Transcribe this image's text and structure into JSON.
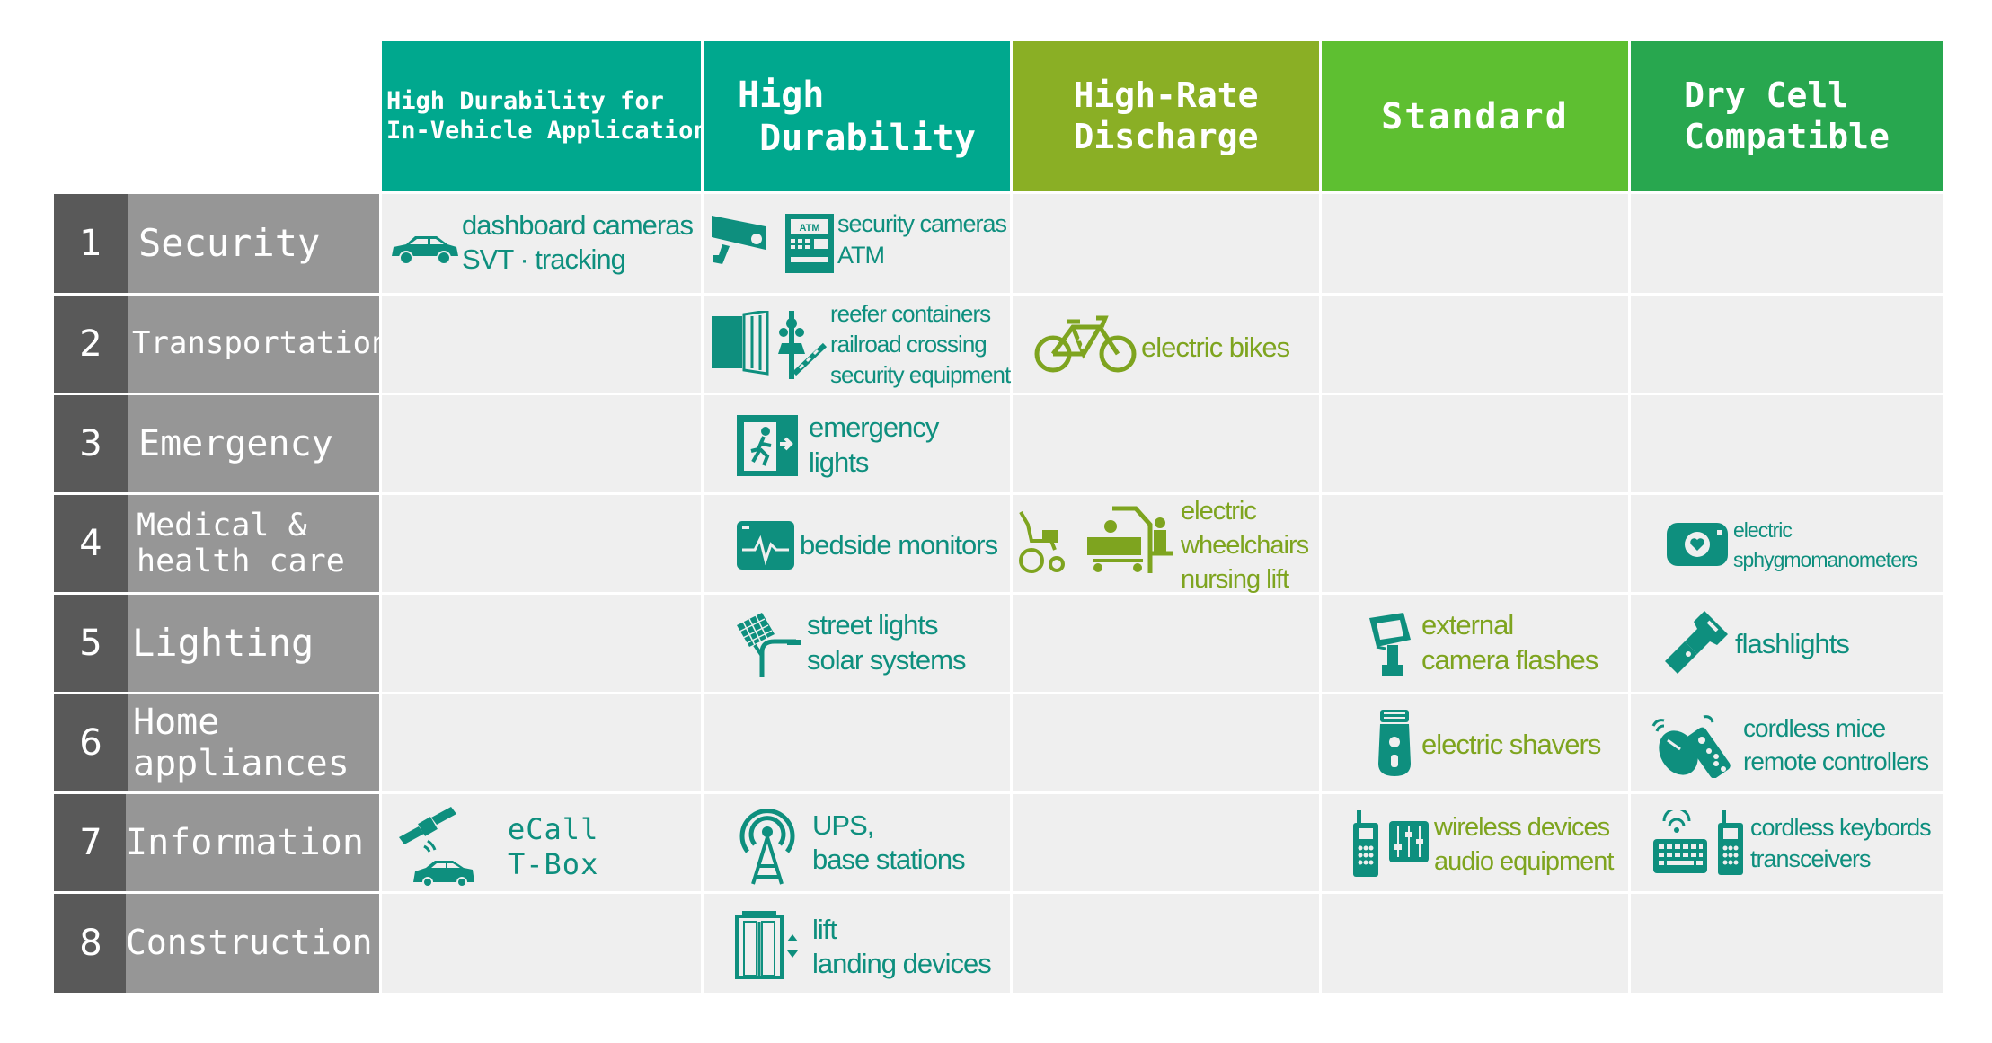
{
  "columns": [
    {
      "label": "High Durability for\nIn-Vehicle Applications",
      "color": "#00a88e"
    },
    {
      "label": "High\n Durability",
      "color": "#00a88e"
    },
    {
      "label": "High-Rate\nDischarge",
      "color": "#8aaf25"
    },
    {
      "label": "Standard",
      "color": "#5ebf31"
    },
    {
      "label": "Dry Cell\nCompatible",
      "color": "#28a74f"
    }
  ],
  "rows": [
    {
      "number": "1",
      "label": "Security"
    },
    {
      "number": "2",
      "label": "Transportation"
    },
    {
      "number": "3",
      "label": "Emergency"
    },
    {
      "number": "4",
      "label": "Medical &\nhealth care"
    },
    {
      "number": "5",
      "label": "Lighting"
    },
    {
      "number": "6",
      "label": "Home\nappliances"
    },
    {
      "number": "7",
      "label": "Information"
    },
    {
      "number": "8",
      "label": "Construction"
    }
  ],
  "applications": {
    "r1c1": {
      "text": "dashboard cameras\nSVT · tracking",
      "icon": "car-icon"
    },
    "r1c2": {
      "text": "security cameras\nATM",
      "icon": "security-camera-atm-icon"
    },
    "r2c2": {
      "text": "reefer containers\nrailroad crossing\nsecurity equipment",
      "icon": "container-railroad-crossing-icon"
    },
    "r2c3": {
      "text": "electric bikes",
      "icon": "electric-bike-icon"
    },
    "r3c2": {
      "text": "emergency\nlights",
      "icon": "emergency-exit-icon"
    },
    "r4c2": {
      "text": "bedside monitors",
      "icon": "heart-monitor-icon"
    },
    "r4c3": {
      "text": "electric\nwheelchairs\nnursing lift",
      "icon": "wheelchair-nursing-lift-icon"
    },
    "r4c5": {
      "text": "electric\nsphygmomanometers",
      "icon": "blood-pressure-monitor-icon"
    },
    "r5c2": {
      "text": "street lights\nsolar systems",
      "icon": "solar-street-light-icon"
    },
    "r5c4": {
      "text": "external\ncamera flashes",
      "icon": "camera-flash-icon"
    },
    "r5c5": {
      "text": "flashlights",
      "icon": "flashlight-icon"
    },
    "r6c4": {
      "text": "electric shavers",
      "icon": "electric-shaver-icon"
    },
    "r6c5": {
      "text": "cordless mice\nremote controllers",
      "icon": "mouse-remote-icon"
    },
    "r7c1": {
      "text": "eCall\nT-Box",
      "icon": "satellite-car-icon"
    },
    "r7c2": {
      "text": "UPS,\nbase stations",
      "icon": "antenna-tower-icon"
    },
    "r7c4": {
      "text": "wireless devices\naudio equipment",
      "icon": "radio-mixer-icon"
    },
    "r7c5": {
      "text": "cordless keybords\ntransceivers",
      "icon": "keyboard-radio-icon"
    },
    "r8c2": {
      "text": "lift\nlanding devices",
      "icon": "elevator-icon"
    }
  },
  "colors": {
    "teal_text": "#0e8f7e",
    "olive_text": "#7ea41f",
    "green_text": "#52b02d",
    "row_number_bg": "#595959",
    "row_label_bg": "#969696",
    "cell_bg": "#efefef"
  }
}
